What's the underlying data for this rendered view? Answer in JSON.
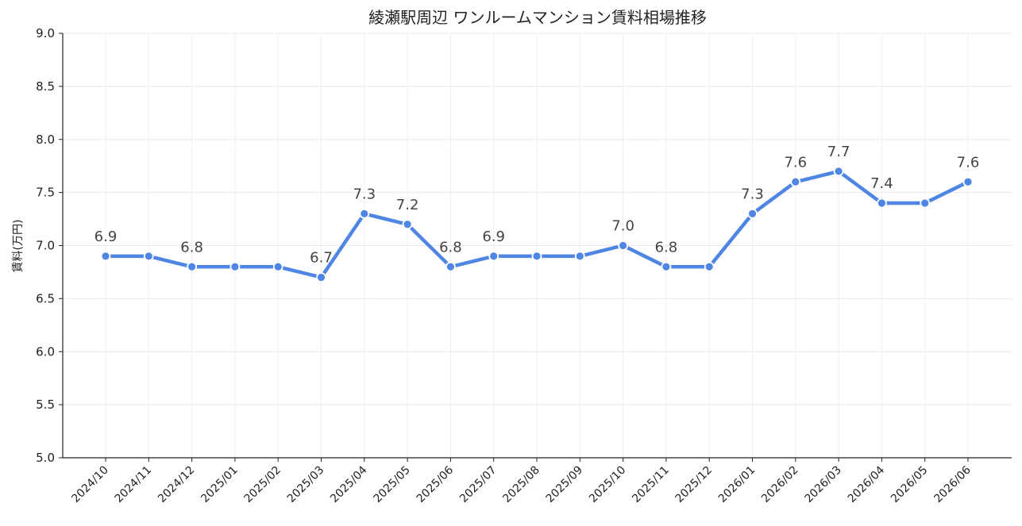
{
  "chart_data": {
    "type": "line",
    "title": "綾瀬駅周辺 ワンルームマンション賃料相場推移",
    "xlabel": "",
    "ylabel": "賃料(万円)",
    "ylim": [
      5.0,
      9.0
    ],
    "yticks": [
      "5.0",
      "5.5",
      "6.0",
      "6.5",
      "7.0",
      "7.5",
      "8.0",
      "8.5",
      "9.0"
    ],
    "grid": true,
    "color": "#4f86e3",
    "categories": [
      "2024/10",
      "2024/11",
      "2024/12",
      "2025/01",
      "2025/02",
      "2025/03",
      "2025/04",
      "2025/05",
      "2025/06",
      "2025/07",
      "2025/08",
      "2025/09",
      "2025/10",
      "2025/11",
      "2025/12",
      "2026/01",
      "2026/02",
      "2026/03",
      "2026/04",
      "2026/05",
      "2026/06"
    ],
    "values": [
      6.9,
      6.9,
      6.8,
      6.8,
      6.8,
      6.7,
      7.3,
      7.2,
      6.8,
      6.9,
      6.9,
      6.9,
      7.0,
      6.8,
      6.8,
      7.3,
      7.6,
      7.7,
      7.4,
      7.4,
      7.6
    ],
    "data_labels": [
      {
        "index": 0,
        "text": "6.9"
      },
      {
        "index": 2,
        "text": "6.8"
      },
      {
        "index": 5,
        "text": "6.7"
      },
      {
        "index": 6,
        "text": "7.3"
      },
      {
        "index": 7,
        "text": "7.2"
      },
      {
        "index": 8,
        "text": "6.8"
      },
      {
        "index": 9,
        "text": "6.9"
      },
      {
        "index": 12,
        "text": "7.0"
      },
      {
        "index": 13,
        "text": "6.8"
      },
      {
        "index": 15,
        "text": "7.3"
      },
      {
        "index": 16,
        "text": "7.6"
      },
      {
        "index": 17,
        "text": "7.7"
      },
      {
        "index": 18,
        "text": "7.4"
      },
      {
        "index": 20,
        "text": "7.6"
      }
    ]
  }
}
